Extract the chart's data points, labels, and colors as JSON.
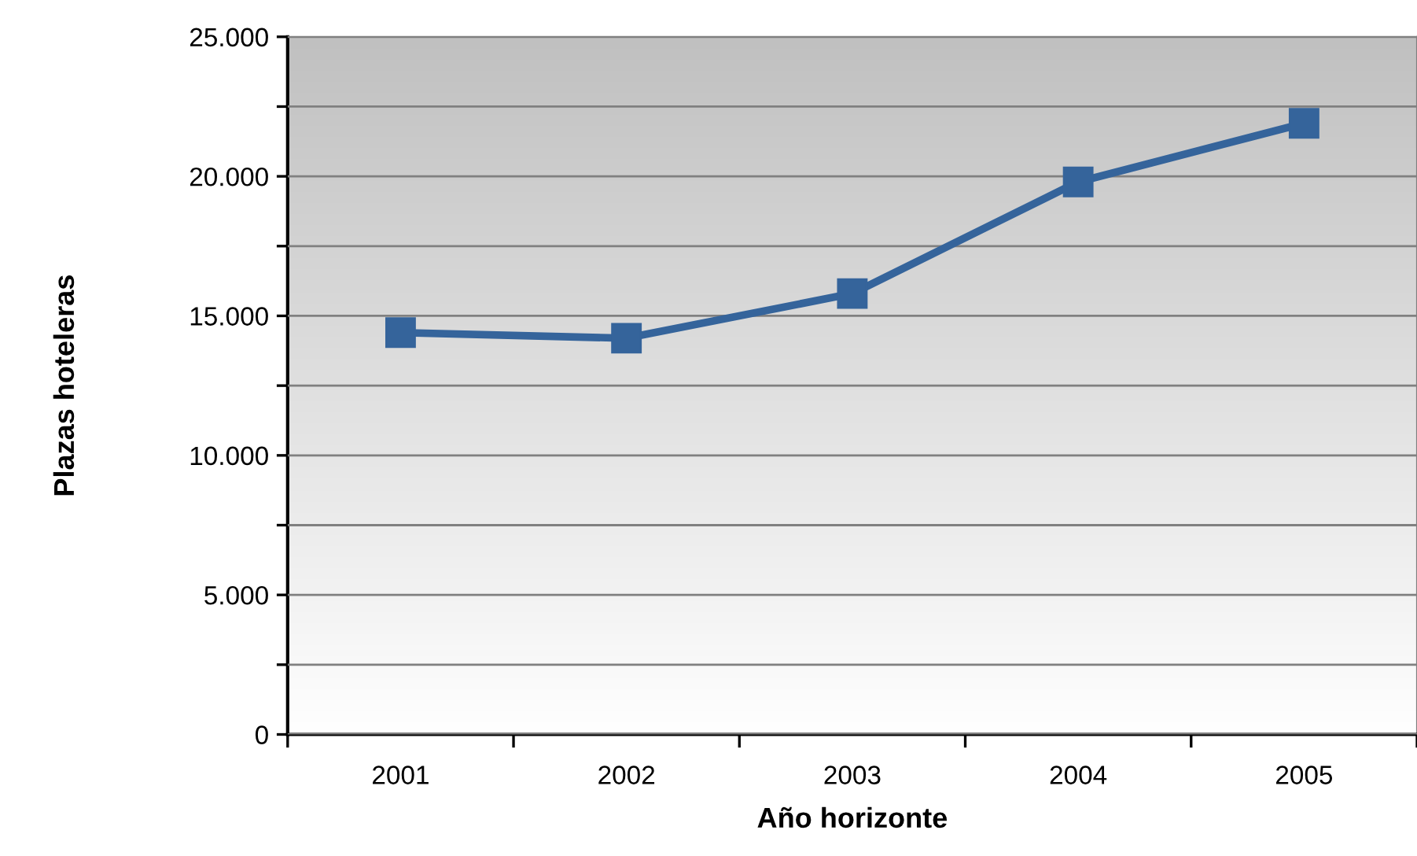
{
  "chart_data": {
    "type": "line",
    "xlabel": "Año horizonte",
    "ylabel": "Plazas hoteleras",
    "categories": [
      "2001",
      "2002",
      "2003",
      "2004",
      "2005"
    ],
    "series": [
      {
        "color": "#35649b",
        "values": [
          14400,
          14200,
          15800,
          19800,
          21900
        ]
      }
    ],
    "ylim": [
      0,
      25000
    ],
    "yticks": [
      0,
      {
        "value": 2500,
        "label": null
      },
      {
        "value": 5000,
        "label": "5.000"
      },
      {
        "value": 7500,
        "label": null
      },
      {
        "value": 10000,
        "label": "10.000"
      },
      {
        "value": 12500,
        "label": null
      },
      {
        "value": 15000,
        "label": "15.000"
      },
      {
        "value": 17500,
        "label": null
      },
      {
        "value": 20000,
        "label": "20.000"
      },
      {
        "value": 22500,
        "label": null
      },
      {
        "value": 25000,
        "label": "25.000"
      }
    ],
    "grid": "y",
    "legend": false,
    "marker": "square",
    "line_style": "solid"
  }
}
